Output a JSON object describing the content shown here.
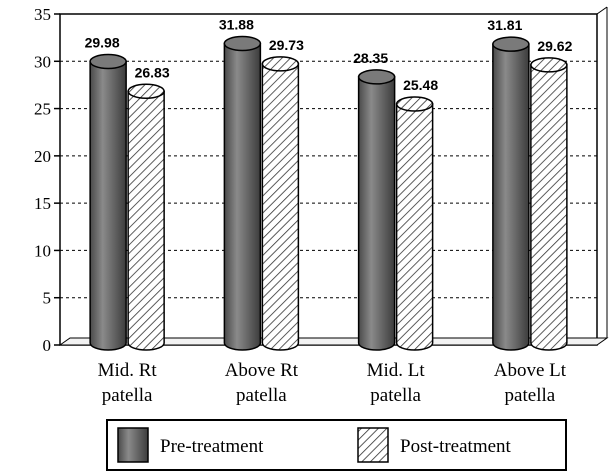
{
  "chart_data": {
    "type": "bar",
    "categories": [
      [
        "Mid. Rt",
        "patella"
      ],
      [
        "Above Rt",
        "patella"
      ],
      [
        "Mid. Lt",
        "patella"
      ],
      [
        "Above Lt",
        "patella"
      ]
    ],
    "series": [
      {
        "name": "Pre-treatment",
        "values": [
          29.98,
          31.88,
          28.35,
          31.81
        ],
        "labels": [
          "29.98",
          "31.88",
          "28.35",
          "31.81"
        ],
        "color": "#6e6e6e",
        "pattern": "solid"
      },
      {
        "name": "Post-treatment",
        "values": [
          26.83,
          29.73,
          25.48,
          29.62
        ],
        "labels": [
          "26.83",
          "29.73",
          "25.48",
          "29.62"
        ],
        "color": "#ffffff",
        "pattern": "diagonal-hatch"
      }
    ],
    "ylim": [
      0,
      35
    ],
    "yticks": [
      "0",
      "5",
      "10",
      "15",
      "20",
      "25",
      "30",
      "35"
    ],
    "grid": true,
    "legend_position": "bottom"
  }
}
